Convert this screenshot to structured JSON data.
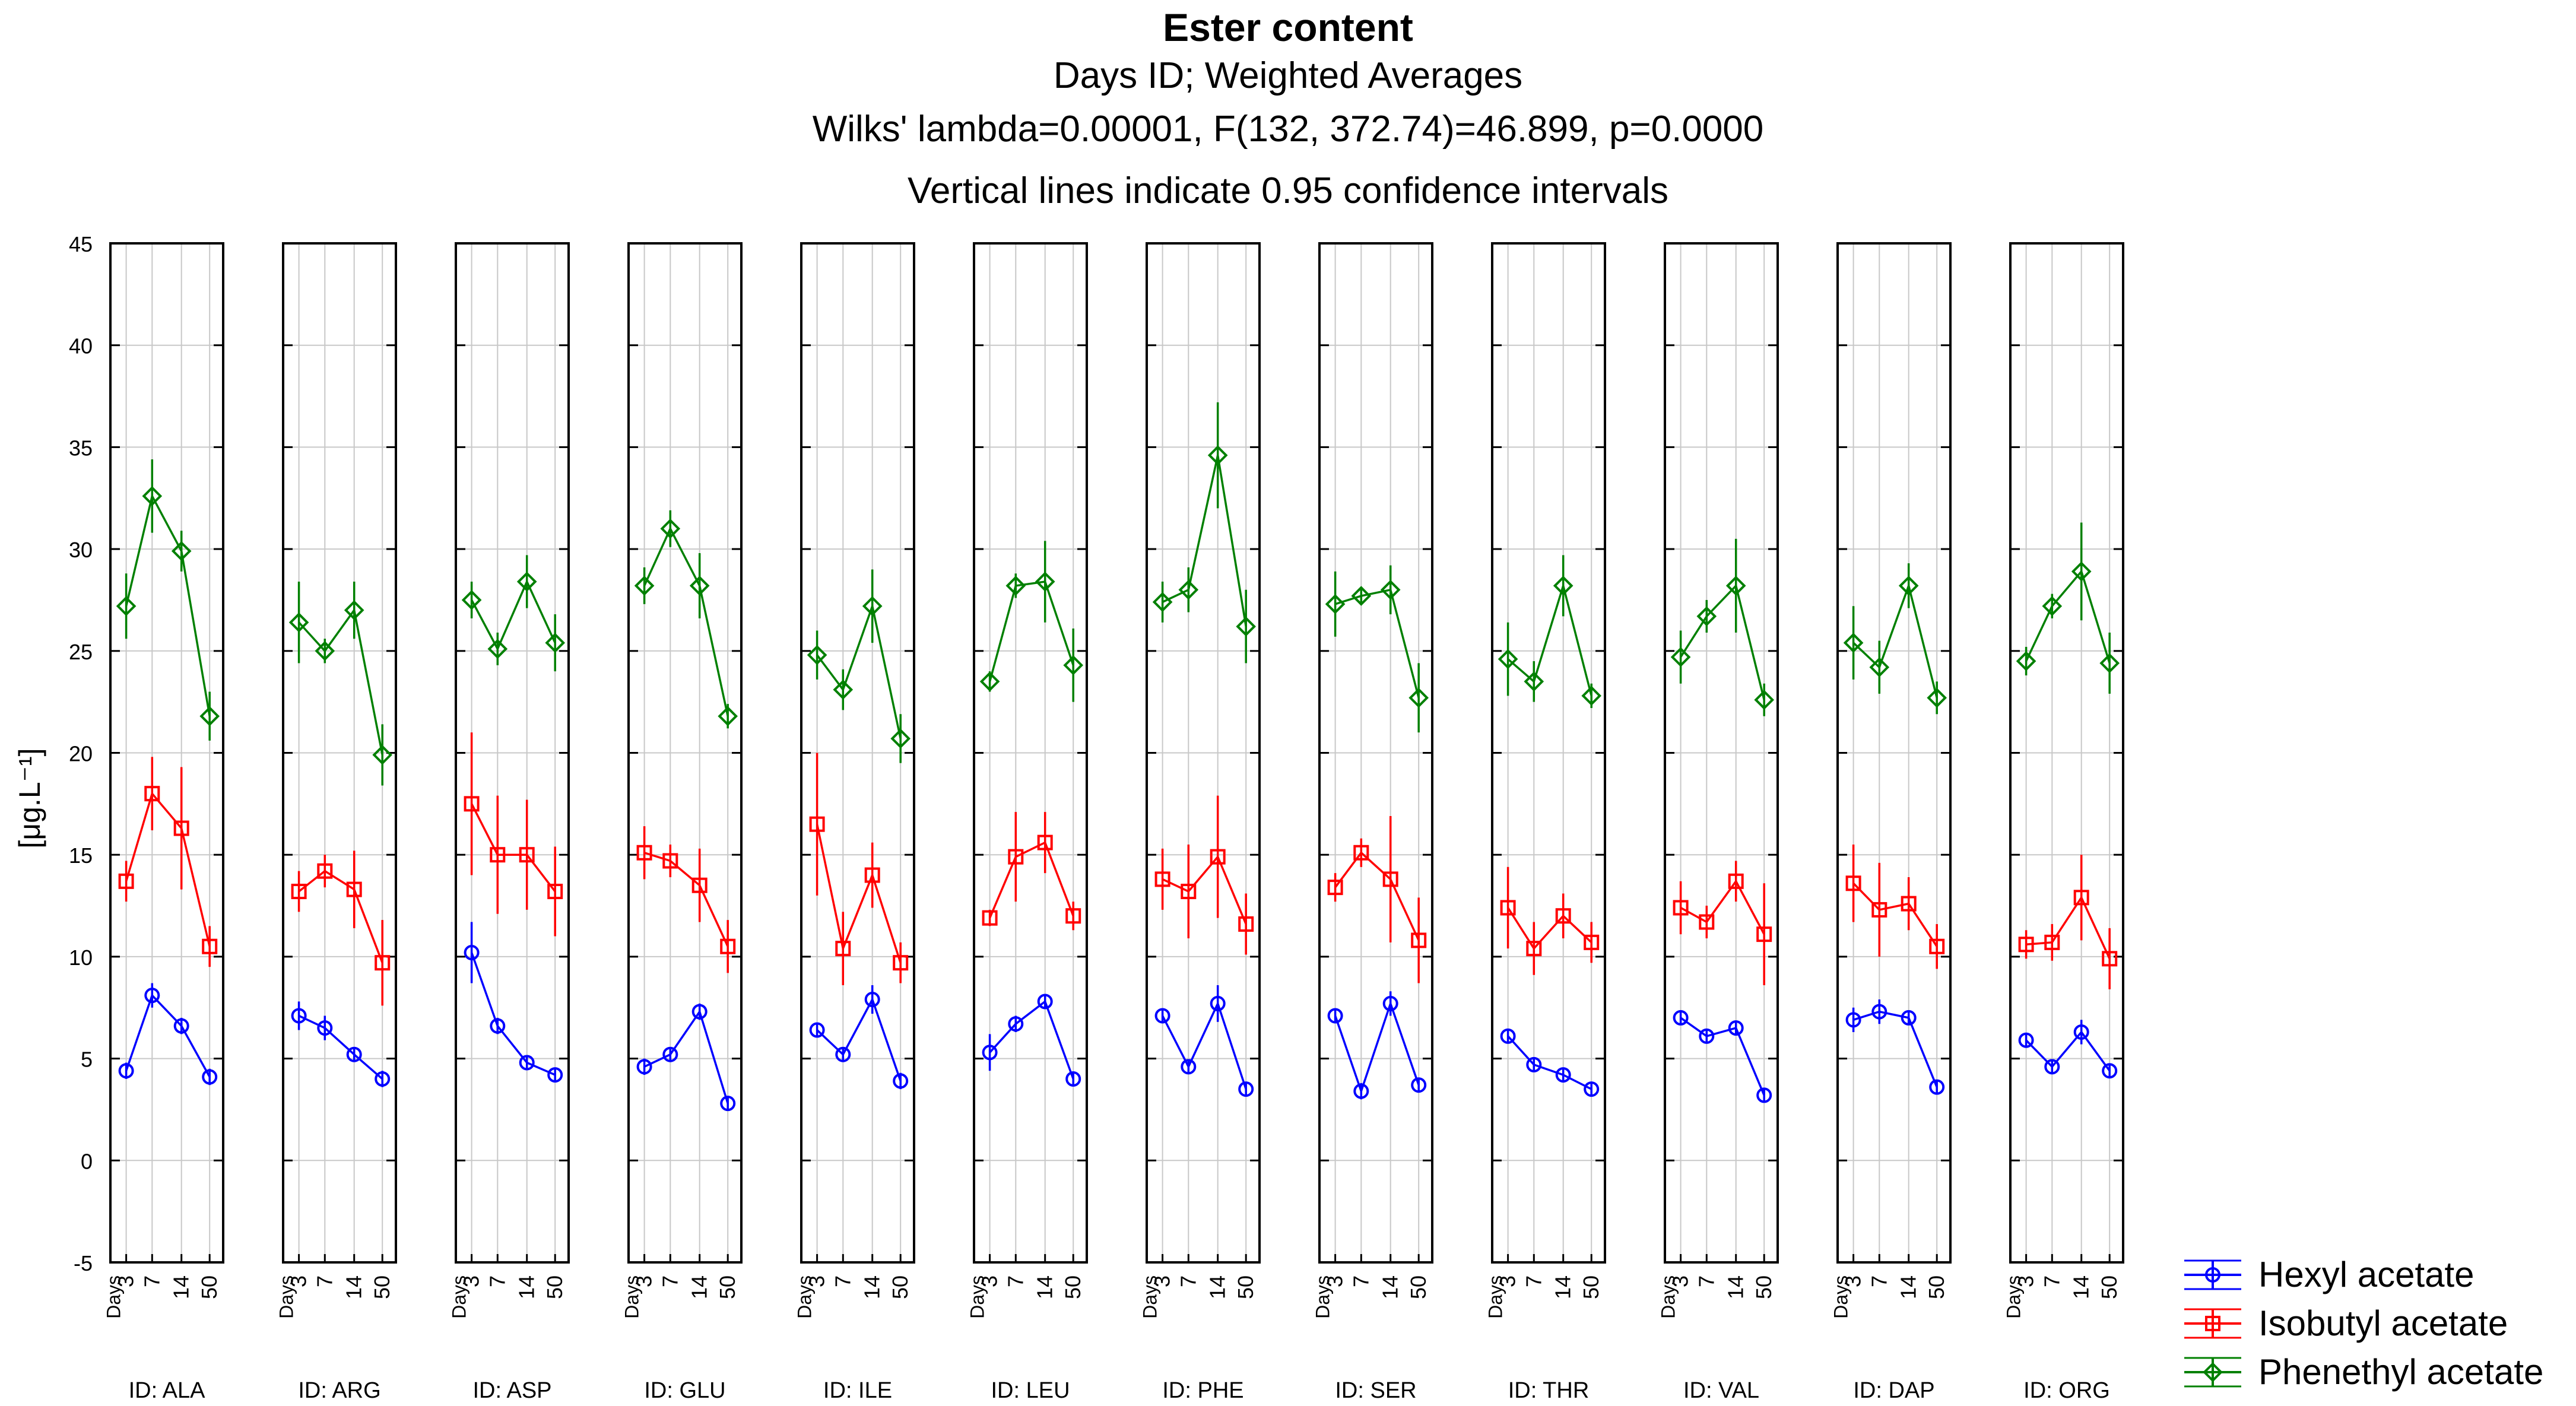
{
  "title": {
    "main": "Ester content",
    "line2": "Days ID; Weighted Averages",
    "line3": "Wilks' lambda=0.00001, F(132, 372.74)=46.899, p=0.0000",
    "line4": "Vertical lines indicate 0.95 confidence intervals"
  },
  "chart_data": {
    "type": "line",
    "ylabel": "[μg.L⁻¹]",
    "ylim": [
      -5,
      45
    ],
    "yticks": [
      -5,
      0,
      5,
      10,
      15,
      20,
      25,
      30,
      35,
      40,
      45
    ],
    "x_var_label": "Days",
    "x_categories": [
      "3",
      "7",
      "14",
      "50"
    ],
    "grid": true,
    "legend_position": "bottom-right",
    "panels": [
      {
        "label": "ID: ALA",
        "series": {
          "Hexyl acetate": {
            "values": [
              4.4,
              8.1,
              6.6,
              4.1
            ],
            "ci": [
              0.4,
              0.6,
              0.4,
              0.4
            ]
          },
          "Isobutyl acetate": {
            "values": [
              13.7,
              18.0,
              16.3,
              10.5
            ],
            "ci": [
              1.0,
              1.8,
              3.0,
              1.0
            ]
          },
          "Phenethyl acetate": {
            "values": [
              27.2,
              32.6,
              29.9,
              21.8
            ],
            "ci": [
              1.6,
              1.8,
              1.0,
              1.2
            ]
          }
        }
      },
      {
        "label": "ID: ARG",
        "series": {
          "Hexyl acetate": {
            "values": [
              7.1,
              6.5,
              5.2,
              4.0
            ],
            "ci": [
              0.7,
              0.6,
              0.3,
              0.4
            ]
          },
          "Isobutyl acetate": {
            "values": [
              13.2,
              14.2,
              13.3,
              9.7
            ],
            "ci": [
              1.0,
              0.8,
              1.9,
              2.1
            ]
          },
          "Phenethyl acetate": {
            "values": [
              26.4,
              25.0,
              27.0,
              19.9
            ],
            "ci": [
              2.0,
              0.6,
              1.4,
              1.5
            ]
          }
        }
      },
      {
        "label": "ID: ASP",
        "series": {
          "Hexyl acetate": {
            "values": [
              10.2,
              6.6,
              4.8,
              4.2
            ],
            "ci": [
              1.5,
              0.4,
              0.3,
              0.3
            ]
          },
          "Isobutyl acetate": {
            "values": [
              17.5,
              15.0,
              15.0,
              13.2
            ],
            "ci": [
              3.5,
              2.9,
              2.7,
              2.2
            ]
          },
          "Phenethyl acetate": {
            "values": [
              27.5,
              25.1,
              28.4,
              25.4
            ],
            "ci": [
              0.9,
              0.8,
              1.3,
              1.4
            ]
          }
        }
      },
      {
        "label": "ID: GLU",
        "series": {
          "Hexyl acetate": {
            "values": [
              4.6,
              5.2,
              7.3,
              2.8
            ],
            "ci": [
              0.4,
              0.3,
              0.4,
              0.3
            ]
          },
          "Isobutyl acetate": {
            "values": [
              15.1,
              14.7,
              13.5,
              10.5
            ],
            "ci": [
              1.3,
              0.8,
              1.8,
              1.3
            ]
          },
          "Phenethyl acetate": {
            "values": [
              28.2,
              31.0,
              28.2,
              21.8
            ],
            "ci": [
              0.9,
              0.9,
              1.6,
              0.6
            ]
          }
        }
      },
      {
        "label": "ID: ILE",
        "series": {
          "Hexyl acetate": {
            "values": [
              6.4,
              5.2,
              7.9,
              3.9
            ],
            "ci": [
              0.3,
              0.3,
              0.7,
              0.4
            ]
          },
          "Isobutyl acetate": {
            "values": [
              16.5,
              10.4,
              14.0,
              9.7
            ],
            "ci": [
              3.5,
              1.8,
              1.6,
              1.0
            ]
          },
          "Phenethyl acetate": {
            "values": [
              24.8,
              23.1,
              27.2,
              20.7
            ],
            "ci": [
              1.2,
              1.0,
              1.8,
              1.2
            ]
          }
        }
      },
      {
        "label": "ID: LEU",
        "series": {
          "Hexyl acetate": {
            "values": [
              5.3,
              6.7,
              7.8,
              4.0
            ],
            "ci": [
              0.9,
              0.4,
              0.3,
              0.3
            ]
          },
          "Isobutyl acetate": {
            "values": [
              11.9,
              14.9,
              15.6,
              12.0
            ],
            "ci": [
              0.4,
              2.2,
              1.5,
              0.7
            ]
          },
          "Phenethyl acetate": {
            "values": [
              23.5,
              28.2,
              28.4,
              24.3
            ],
            "ci": [
              0.5,
              0.6,
              2.0,
              1.8
            ]
          }
        }
      },
      {
        "label": "ID: PHE",
        "series": {
          "Hexyl acetate": {
            "values": [
              7.1,
              4.6,
              7.7,
              3.5
            ],
            "ci": [
              0.3,
              0.3,
              0.9,
              0.3
            ]
          },
          "Isobutyl acetate": {
            "values": [
              13.8,
              13.2,
              14.9,
              11.6
            ],
            "ci": [
              1.5,
              2.3,
              3.0,
              1.5
            ]
          },
          "Phenethyl acetate": {
            "values": [
              27.4,
              28.0,
              34.6,
              26.2
            ],
            "ci": [
              1.0,
              1.1,
              2.6,
              1.8
            ]
          }
        }
      },
      {
        "label": "ID: SER",
        "series": {
          "Hexyl acetate": {
            "values": [
              7.1,
              3.4,
              7.7,
              3.7
            ],
            "ci": [
              0.3,
              0.4,
              0.6,
              0.3
            ]
          },
          "Isobutyl acetate": {
            "values": [
              13.4,
              15.1,
              13.8,
              10.8
            ],
            "ci": [
              0.7,
              0.7,
              3.1,
              2.1
            ]
          },
          "Phenethyl acetate": {
            "values": [
              27.3,
              27.7,
              28.0,
              22.7
            ],
            "ci": [
              1.6,
              0.4,
              1.2,
              1.7
            ]
          }
        }
      },
      {
        "label": "ID: THR",
        "series": {
          "Hexyl acetate": {
            "values": [
              6.1,
              4.7,
              4.2,
              3.5
            ],
            "ci": [
              0.3,
              0.3,
              0.3,
              0.3
            ]
          },
          "Isobutyl acetate": {
            "values": [
              12.4,
              10.4,
              12.0,
              10.7
            ],
            "ci": [
              2.0,
              1.3,
              1.1,
              1.0
            ]
          },
          "Phenethyl acetate": {
            "values": [
              24.6,
              23.5,
              28.2,
              22.8
            ],
            "ci": [
              1.8,
              1.0,
              1.5,
              0.6
            ]
          }
        }
      },
      {
        "label": "ID: VAL",
        "series": {
          "Hexyl acetate": {
            "values": [
              7.0,
              6.1,
              6.5,
              3.2
            ],
            "ci": [
              0.3,
              0.3,
              0.3,
              0.3
            ]
          },
          "Isobutyl acetate": {
            "values": [
              12.4,
              11.7,
              13.7,
              11.1
            ],
            "ci": [
              1.3,
              0.8,
              1.0,
              2.5
            ]
          },
          "Phenethyl acetate": {
            "values": [
              24.7,
              26.7,
              28.2,
              22.6
            ],
            "ci": [
              1.3,
              0.8,
              2.3,
              0.8
            ]
          }
        }
      },
      {
        "label": "ID: DAP",
        "series": {
          "Hexyl acetate": {
            "values": [
              6.9,
              7.3,
              7.0,
              3.6
            ],
            "ci": [
              0.6,
              0.6,
              0.3,
              0.3
            ]
          },
          "Isobutyl acetate": {
            "values": [
              13.6,
              12.3,
              12.6,
              10.5
            ],
            "ci": [
              1.9,
              2.3,
              1.3,
              1.1
            ]
          },
          "Phenethyl acetate": {
            "values": [
              25.4,
              24.2,
              28.2,
              22.7
            ],
            "ci": [
              1.8,
              1.3,
              1.1,
              0.8
            ]
          }
        }
      },
      {
        "label": "ID: ORG",
        "series": {
          "Hexyl acetate": {
            "values": [
              5.9,
              4.6,
              6.3,
              4.4
            ],
            "ci": [
              0.3,
              0.3,
              0.6,
              0.3
            ]
          },
          "Isobutyl acetate": {
            "values": [
              10.6,
              10.7,
              12.9,
              9.9
            ],
            "ci": [
              0.7,
              0.9,
              2.1,
              1.5
            ]
          },
          "Phenethyl acetate": {
            "values": [
              24.5,
              27.2,
              28.9,
              24.4
            ],
            "ci": [
              0.7,
              0.6,
              2.4,
              1.5
            ]
          }
        }
      }
    ],
    "legend": [
      {
        "name": "Hexyl acetate",
        "color": "#0000ff",
        "marker": "circle"
      },
      {
        "name": "Isobutyl acetate",
        "color": "#ff0000",
        "marker": "square"
      },
      {
        "name": "Phenethyl acetate",
        "color": "#008000",
        "marker": "diamond"
      }
    ]
  }
}
